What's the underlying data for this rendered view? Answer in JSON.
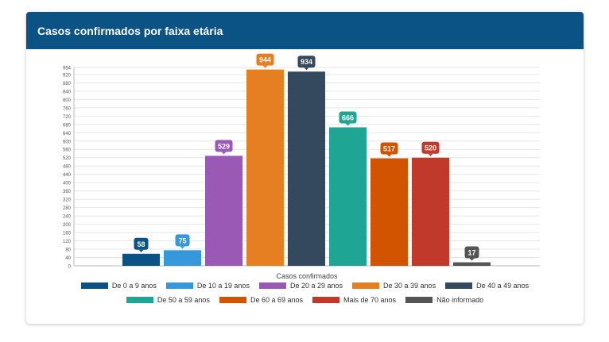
{
  "card": {
    "title": "Casos confirmados por faixa etária"
  },
  "chart_data": {
    "type": "bar",
    "xlabel": "Casos confirmados",
    "ylabel": "",
    "ylim": [
      0,
      954
    ],
    "yticks": [
      0,
      40,
      80,
      120,
      160,
      200,
      240,
      280,
      320,
      360,
      400,
      440,
      480,
      520,
      560,
      600,
      640,
      680,
      720,
      760,
      800,
      840,
      880,
      920,
      954
    ],
    "grid": true,
    "legend_position": "bottom",
    "series": [
      {
        "name": "De 0 a 9 anos",
        "value": 58,
        "color": "#0b5384"
      },
      {
        "name": "De 10 a 19 anos",
        "value": 75,
        "color": "#3498db"
      },
      {
        "name": "De 20 a 29 anos",
        "value": 529,
        "color": "#9b59b6"
      },
      {
        "name": "De 30 a 39 anos",
        "value": 944,
        "color": "#e67e22"
      },
      {
        "name": "De 40 a 49 anos",
        "value": 934,
        "color": "#34495e"
      },
      {
        "name": "De 50 a 59 anos",
        "value": 666,
        "color": "#1fa593"
      },
      {
        "name": "De 60 a 69 anos",
        "value": 517,
        "color": "#d35400"
      },
      {
        "name": "Mais de 70 anos",
        "value": 520,
        "color": "#c0392b"
      },
      {
        "name": "Não informado",
        "value": 17,
        "color": "#555555"
      }
    ]
  },
  "legend_rows": [
    [
      0,
      1,
      2,
      3,
      4
    ],
    [
      5,
      6,
      7,
      8
    ]
  ]
}
